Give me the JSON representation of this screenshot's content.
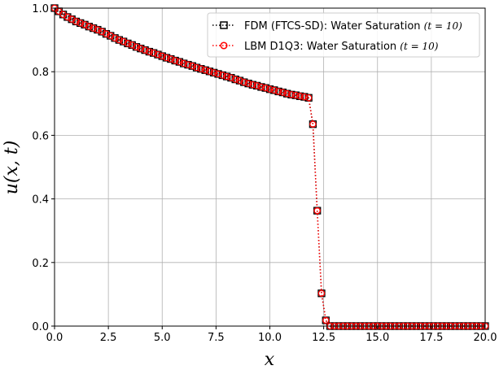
{
  "chart_data": {
    "type": "line",
    "title": "",
    "xlabel": "x",
    "ylabel": "u(x, t)",
    "xlim": [
      0,
      20
    ],
    "ylim": [
      0,
      1
    ],
    "grid": true,
    "legend_position": "top-right",
    "xticks": [
      "0.0",
      "2.5",
      "5.0",
      "7.5",
      "10.0",
      "12.5",
      "15.0",
      "17.5",
      "20.0"
    ],
    "yticks": [
      "0.0",
      "0.2",
      "0.4",
      "0.6",
      "0.8",
      "1.0"
    ],
    "x_start": 0,
    "x_step": 0.2,
    "series": [
      {
        "name": "FDM (FTCS-SD): Water Saturation",
        "name_suffix": "(t = 10)",
        "color": "#000000",
        "marker": "square",
        "values": [
          1.0,
          0.99,
          0.98,
          0.972,
          0.965,
          0.958,
          0.953,
          0.948,
          0.942,
          0.937,
          0.932,
          0.926,
          0.919,
          0.913,
          0.906,
          0.9,
          0.895,
          0.889,
          0.884,
          0.878,
          0.873,
          0.868,
          0.863,
          0.859,
          0.854,
          0.849,
          0.844,
          0.84,
          0.835,
          0.831,
          0.826,
          0.822,
          0.818,
          0.813,
          0.809,
          0.805,
          0.801,
          0.797,
          0.793,
          0.789,
          0.785,
          0.781,
          0.776,
          0.772,
          0.767,
          0.763,
          0.759,
          0.756,
          0.752,
          0.749,
          0.745,
          0.742,
          0.738,
          0.735,
          0.731,
          0.728,
          0.726,
          0.723,
          0.721,
          0.718,
          0.635,
          0.363,
          0.103,
          0.018,
          0,
          0,
          0,
          0,
          0,
          0,
          0,
          0,
          0,
          0,
          0,
          0,
          0,
          0,
          0,
          0,
          0,
          0,
          0,
          0,
          0,
          0,
          0,
          0,
          0,
          0,
          0,
          0,
          0,
          0,
          0,
          0,
          0,
          0,
          0,
          0,
          0
        ]
      },
      {
        "name": "LBM D1Q3: Water Saturation",
        "name_suffix": "(t = 10)",
        "color": "#ff0000",
        "marker": "circle",
        "values": [
          1.0,
          0.99,
          0.98,
          0.972,
          0.965,
          0.958,
          0.953,
          0.948,
          0.942,
          0.937,
          0.932,
          0.926,
          0.919,
          0.913,
          0.906,
          0.9,
          0.895,
          0.889,
          0.884,
          0.878,
          0.873,
          0.868,
          0.863,
          0.859,
          0.854,
          0.849,
          0.844,
          0.84,
          0.835,
          0.831,
          0.826,
          0.822,
          0.818,
          0.813,
          0.809,
          0.805,
          0.801,
          0.797,
          0.793,
          0.789,
          0.785,
          0.781,
          0.776,
          0.772,
          0.767,
          0.763,
          0.759,
          0.756,
          0.752,
          0.749,
          0.745,
          0.742,
          0.738,
          0.735,
          0.731,
          0.728,
          0.726,
          0.723,
          0.721,
          0.718,
          0.635,
          0.363,
          0.103,
          0.018,
          0,
          0,
          0,
          0,
          0,
          0,
          0,
          0,
          0,
          0,
          0,
          0,
          0,
          0,
          0,
          0,
          0,
          0,
          0,
          0,
          0,
          0,
          0,
          0,
          0,
          0,
          0,
          0,
          0,
          0,
          0,
          0,
          0,
          0,
          0,
          0,
          0
        ]
      }
    ]
  }
}
